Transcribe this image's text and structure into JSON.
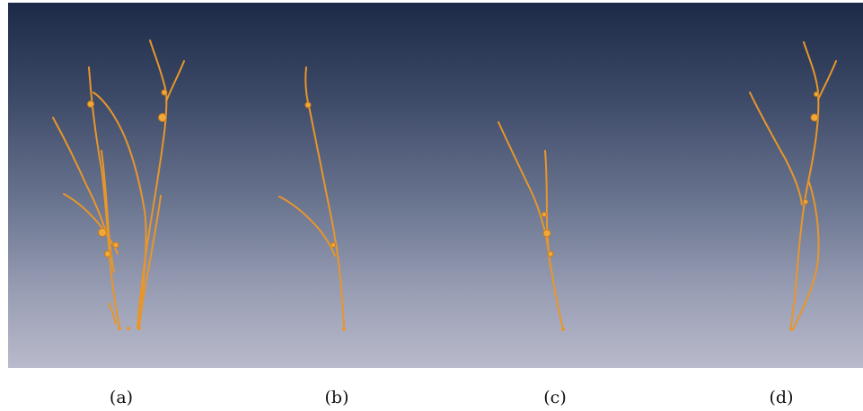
{
  "captions": {
    "a": "(a)",
    "b": "(b)",
    "c": "(c)",
    "d": "(d)"
  },
  "colors": {
    "root_stroke": "#e8962a",
    "background_top": "#1c2a48",
    "background_bottom": "#b9bacb"
  }
}
